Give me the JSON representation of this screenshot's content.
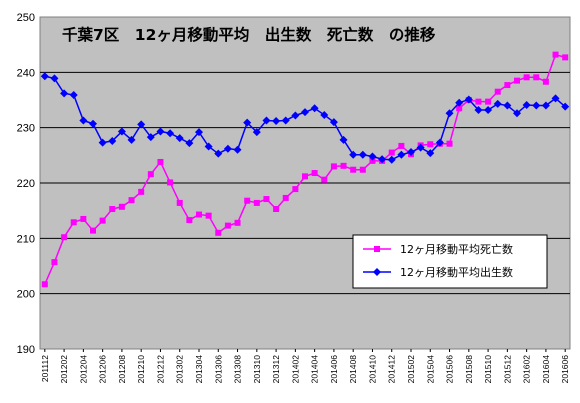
{
  "chart_data": {
    "type": "line",
    "title": "千葉7区　12ヶ月移動平均　出生数　死亡数　の推移",
    "xlabel": "",
    "ylabel": "",
    "ylim": [
      190,
      250
    ],
    "yticks": [
      190,
      200,
      210,
      220,
      230,
      240,
      250
    ],
    "grid": "horizontal",
    "legend_position": "bottom-right",
    "categories": [
      "201112",
      "201201",
      "201202",
      "201203",
      "201204",
      "201205",
      "201206",
      "201207",
      "201208",
      "201209",
      "201210",
      "201211",
      "201212",
      "201301",
      "201302",
      "201303",
      "201304",
      "201305",
      "201306",
      "201307",
      "201308",
      "201309",
      "201310",
      "201311",
      "201312",
      "201401",
      "201402",
      "201403",
      "201404",
      "201405",
      "201406",
      "201407",
      "201408",
      "201409",
      "201410",
      "201411",
      "201412",
      "201501",
      "201502",
      "201503",
      "201504",
      "201505",
      "201506",
      "201507",
      "201508",
      "201509",
      "201510",
      "201511",
      "201512",
      "201601",
      "201602",
      "201603",
      "201604",
      "201605",
      "201606"
    ],
    "tick_labels": [
      "201112",
      "201202",
      "201204",
      "201206",
      "201208",
      "201210",
      "201212",
      "201302",
      "201304",
      "201306",
      "201308",
      "201310",
      "201312",
      "201402",
      "201404",
      "201406",
      "201408",
      "201410",
      "201412",
      "201502",
      "201504",
      "201506",
      "201508",
      "201510",
      "201512",
      "201602",
      "201604",
      "201606"
    ],
    "series": [
      {
        "name": "12ヶ月移動平均死亡数",
        "color": "#ff00ff",
        "marker": "square",
        "values": [
          201.7,
          205.7,
          210.2,
          212.9,
          213.5,
          211.4,
          213.2,
          215.3,
          215.7,
          216.9,
          218.4,
          221.6,
          223.8,
          220.1,
          216.4,
          213.3,
          214.3,
          214.1,
          211.0,
          212.3,
          212.8,
          216.8,
          216.4,
          217.1,
          215.3,
          217.3,
          218.9,
          221.2,
          221.8,
          220.6,
          223.0,
          223.1,
          222.4,
          222.4,
          224.0,
          224.0,
          225.5,
          226.7,
          225.2,
          226.8,
          227.0,
          227.1,
          227.1,
          233.5,
          235.0,
          234.7,
          234.7,
          236.5,
          237.7,
          238.5,
          239.1,
          239.1,
          238.3,
          243.2,
          242.7
        ]
      },
      {
        "name": "12ヶ月移動平均出生数",
        "color": "#0000ff",
        "marker": "diamond",
        "values": [
          239.3,
          238.9,
          236.2,
          235.9,
          231.3,
          230.7,
          227.3,
          227.6,
          229.3,
          227.8,
          230.6,
          228.3,
          229.3,
          229.0,
          228.1,
          227.2,
          229.2,
          226.6,
          225.3,
          226.2,
          226.0,
          230.9,
          229.2,
          231.3,
          231.2,
          231.3,
          232.2,
          232.8,
          233.5,
          232.3,
          231.0,
          227.8,
          225.1,
          225.1,
          224.8,
          224.3,
          224.2,
          225.1,
          225.6,
          226.4,
          225.4,
          227.3,
          232.6,
          234.5,
          235.1,
          233.2,
          233.2,
          234.3,
          234.0,
          232.6,
          234.1,
          234.0,
          234.0,
          235.3,
          233.8
        ]
      }
    ]
  }
}
